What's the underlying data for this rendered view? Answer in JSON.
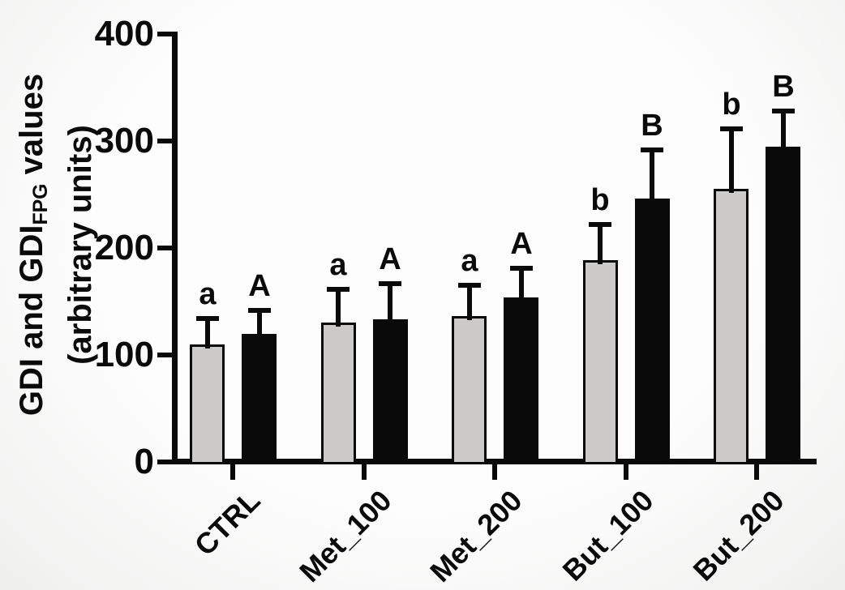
{
  "figure": {
    "ylabel": {
      "prefix": "GDI and GDI",
      "sub": "FPG",
      "suffix": " values",
      "line2": "(arbitrary units)"
    },
    "colors": {
      "axis": "#0a0a0a",
      "gray_bar_fill": "#cbcac8",
      "black_bar_fill": "#0a0a0a",
      "background": "#f4f4f2"
    }
  },
  "chart_data": {
    "type": "bar",
    "title": "",
    "xlabel": "",
    "ylabel_line1": "GDI and GDI_FPG values",
    "ylabel_line2": "(arbitrary units)",
    "ylim": [
      0,
      400
    ],
    "yticks": [
      0,
      100,
      200,
      300,
      400
    ],
    "grid": false,
    "legend": "none",
    "categories": [
      "CTRL",
      "Met_100",
      "Met_200",
      "But_100",
      "But_200"
    ],
    "series": [
      {
        "name": "GDI (gray bars)",
        "fill": "#cbcac8",
        "values": [
          110,
          130,
          136,
          189,
          255
        ],
        "errors_up": [
          24,
          31,
          29,
          33,
          56
        ],
        "letters": [
          "a",
          "a",
          "a",
          "b",
          "b"
        ]
      },
      {
        "name": "GDI_FPG (black bars)",
        "fill": "#0a0a0a",
        "values": [
          120,
          133,
          154,
          246,
          295
        ],
        "errors_up": [
          22,
          34,
          27,
          46,
          33
        ],
        "letters": [
          "A",
          "A",
          "A",
          "B",
          "B"
        ]
      }
    ]
  }
}
